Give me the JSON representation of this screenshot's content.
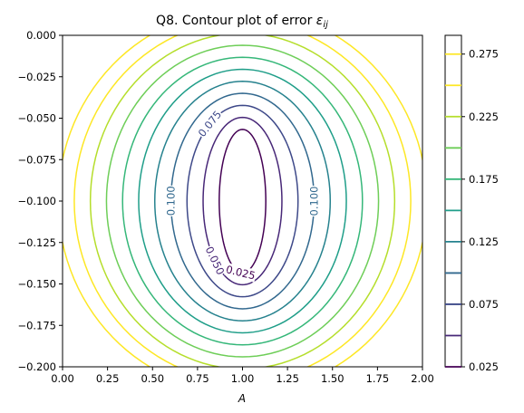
{
  "chart_data": {
    "type": "contour",
    "title_prefix": "Q8. Contour plot of error ",
    "title_symbol": "ε",
    "title_subscript": "ij",
    "xlabel": "A",
    "ylabel": "",
    "xlim": [
      0.0,
      2.0
    ],
    "ylim": [
      -0.2,
      0.0
    ],
    "x_ticks": [
      "0.00",
      "0.25",
      "0.50",
      "0.75",
      "1.00",
      "1.25",
      "1.50",
      "1.75",
      "2.00"
    ],
    "y_ticks": [
      "0.000",
      "−0.025",
      "−0.050",
      "−0.075",
      "−0.100",
      "−0.125",
      "−0.150",
      "−0.175",
      "−0.200"
    ],
    "center": {
      "x": 1.0,
      "y": -0.1
    },
    "levels": [
      0.025,
      0.05,
      0.075,
      0.1,
      0.125,
      0.15,
      0.175,
      0.2,
      0.225,
      0.25,
      0.275
    ],
    "level_colors": [
      "#440154",
      "#482878",
      "#3e4989",
      "#31688e",
      "#26828e",
      "#1f9e89",
      "#35b779",
      "#6ece58",
      "#b5de2b",
      "#fde725",
      "#fde725"
    ],
    "contour_labels": [
      {
        "text": "0.025",
        "level": 0.025
      },
      {
        "text": "0.050",
        "level": 0.05
      },
      {
        "text": "0.075",
        "level": 0.075
      },
      {
        "text": "0.100",
        "level": 0.1
      },
      {
        "text": "0.100",
        "level": 0.1
      }
    ],
    "colorbar": {
      "range": [
        0.025,
        0.29
      ],
      "tick_labels": [
        "0.275",
        "0.225",
        "0.175",
        "0.125",
        "0.075",
        "0.025"
      ],
      "tick_values": [
        0.275,
        0.225,
        0.175,
        0.125,
        0.075,
        0.025
      ]
    },
    "grid": false
  }
}
